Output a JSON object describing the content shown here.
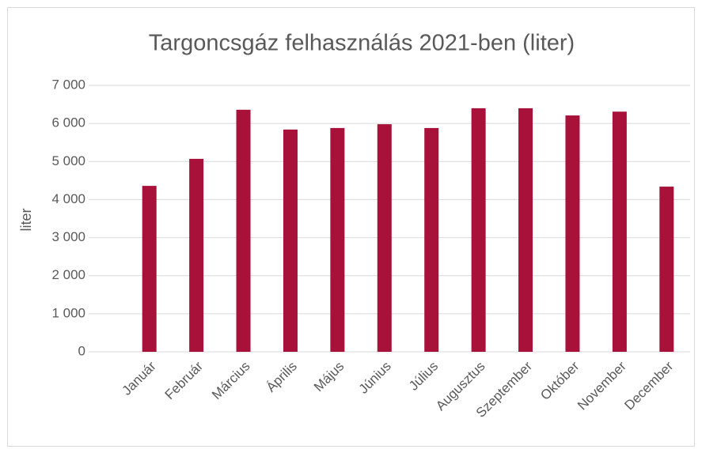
{
  "chart_data": {
    "type": "bar",
    "title": "Targoncsgáz felhasználás 2021-ben (liter)",
    "y_label": "liter",
    "categories": [
      "Január",
      "Február",
      "Március",
      "Április",
      "Május",
      "Június",
      "Július",
      "Augusztus",
      "Szeptember",
      "Október",
      "November",
      "December"
    ],
    "values": [
      4360,
      5070,
      6360,
      5840,
      5880,
      5980,
      5880,
      6400,
      6400,
      6210,
      6310,
      4340
    ],
    "color": "#a8123a",
    "ylim": [
      0,
      7000
    ],
    "yticks": [
      0,
      {
        "value": 1000,
        "label": "1 000"
      },
      {
        "value": 2000,
        "label": "2 000"
      },
      {
        "value": 3000,
        "label": "3 000"
      },
      {
        "value": 4000,
        "label": "4 000"
      },
      {
        "value": 5000,
        "label": "5 000"
      },
      {
        "value": 6000,
        "label": "6 000"
      },
      {
        "value": 7000,
        "label": "7 000"
      }
    ],
    "grid": true
  }
}
